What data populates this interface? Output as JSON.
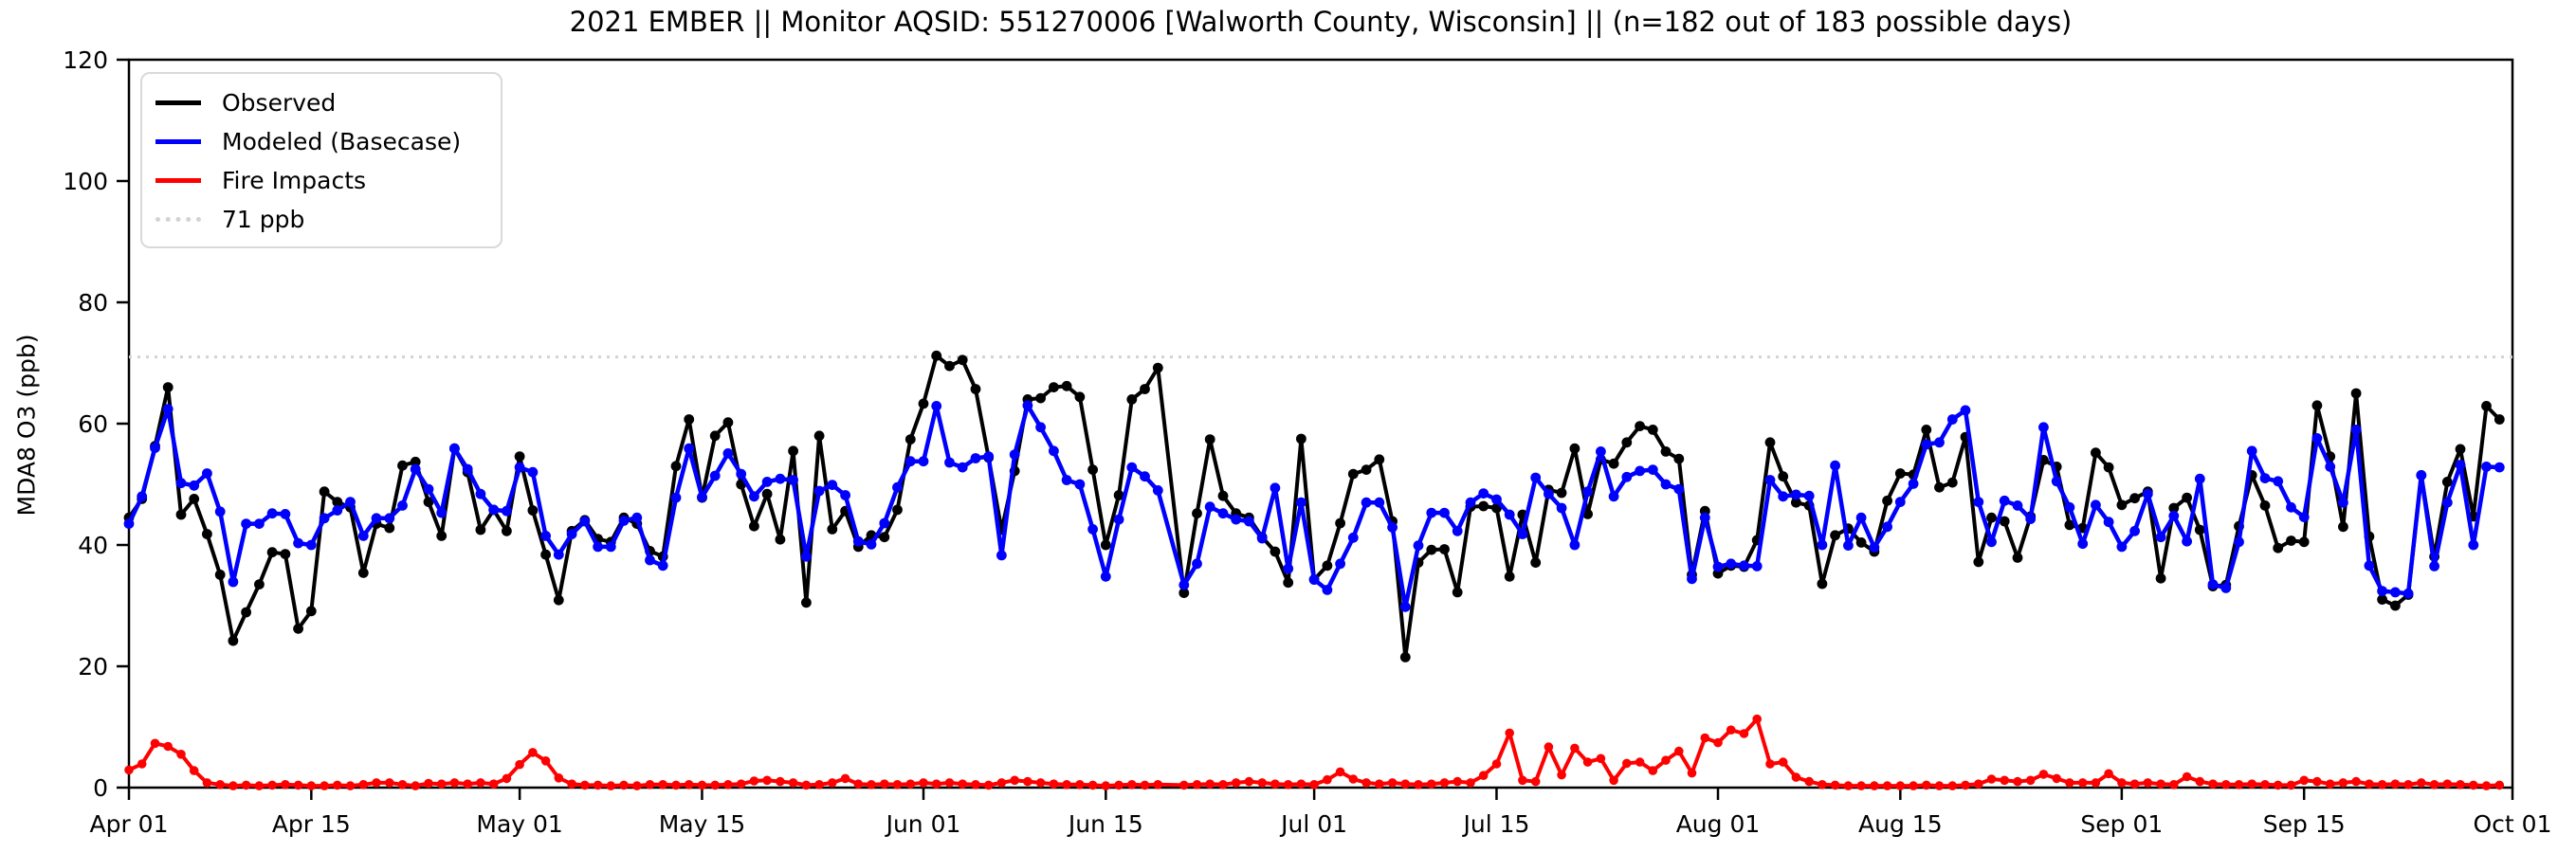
{
  "chart_data": {
    "type": "line",
    "title": "2021 EMBER || Monitor AQSID: 551270006 [Walworth County, Wisconsin] || (n=182 out of 183 possible days)",
    "xlabel": "",
    "ylabel": "MDA8 O3 (ppb)",
    "ylim": [
      0,
      120
    ],
    "yticks": [
      0,
      20,
      40,
      60,
      80,
      100,
      120
    ],
    "x_start": "2021-04-01",
    "x_end": "2021-10-01",
    "n_days": 183,
    "grid": false,
    "legend_position": "upper left",
    "xticks": [
      {
        "label": "Apr 01",
        "day": 0
      },
      {
        "label": "Apr 15",
        "day": 14
      },
      {
        "label": "May 01",
        "day": 30
      },
      {
        "label": "May 15",
        "day": 44
      },
      {
        "label": "Jun 01",
        "day": 61
      },
      {
        "label": "Jun 15",
        "day": 75
      },
      {
        "label": "Jul 01",
        "day": 91
      },
      {
        "label": "Jul 15",
        "day": 105
      },
      {
        "label": "Aug 01",
        "day": 122
      },
      {
        "label": "Aug 15",
        "day": 136
      },
      {
        "label": "Sep 01",
        "day": 153
      },
      {
        "label": "Sep 15",
        "day": 167
      },
      {
        "label": "Oct 01",
        "day": 183
      }
    ],
    "threshold": {
      "value": 71,
      "label": "71 ppb",
      "color": "#d3d3d3",
      "style": "dotted"
    },
    "missing_day_note": "one day (~Jun 20) has no data point; line connects across it",
    "series": [
      {
        "name": "Observed",
        "color": "#000000",
        "values": [
          44.5,
          47.6,
          56.3,
          66,
          45,
          47.6,
          41.8,
          35.1,
          24.2,
          28.9,
          33.5,
          38.8,
          38.5,
          26.2,
          29.1,
          48.8,
          47.1,
          46.2,
          35.4,
          43.5,
          42.8,
          53.1,
          53.7,
          47.1,
          41.5,
          55.9,
          52,
          42.5,
          45.8,
          42.3,
          54.6,
          45.7,
          38.4,
          30.9,
          42.3,
          44.1,
          41,
          40.5,
          44.5,
          43.5,
          39,
          38.1,
          53,
          60.7,
          47.8,
          58,
          60.2,
          50,
          43.1,
          48.4,
          40.9,
          55.5,
          30.5,
          58,
          42.6,
          45.6,
          39.7,
          41.6,
          41.3,
          45.8,
          57.4,
          63.3,
          71.2,
          69.5,
          70.5,
          65.7,
          54.4,
          42.5,
          52.2,
          64,
          64.2,
          66,
          66.2,
          64.4,
          52.4,
          40,
          48.2,
          64,
          65.7,
          69.2,
          null,
          32.1,
          45.2,
          57.4,
          48.1,
          45.2,
          44.5,
          41.3,
          38.9,
          33.8,
          57.5,
          34.3,
          36.6,
          43.6,
          51.7,
          52.4,
          54.1,
          43.9,
          21.5,
          37.1,
          39.2,
          39.3,
          32.2,
          46.3,
          46.4,
          46.1,
          34.8,
          45,
          37.1,
          49.1,
          48.6,
          55.9,
          45.1,
          54.1,
          53.4,
          56.9,
          59.6,
          59,
          55.4,
          54.2,
          35.1,
          45.6,
          35.3,
          36.6,
          36.4,
          40.8,
          56.9,
          51.3,
          47,
          46.5,
          33.6,
          41.6,
          42.7,
          40.4,
          38.9,
          47.3,
          51.8,
          51.6,
          59,
          49.5,
          50.3,
          57.8,
          37.2,
          44.5,
          43.9,
          37.9,
          44.7,
          54,
          52.9,
          43.3,
          42.8,
          55.2,
          52.8,
          46.6,
          47.7,
          48.8,
          34.5,
          46.1,
          47.8,
          42.5,
          33.2,
          33.4,
          43.1,
          51.5,
          46.5,
          39.5,
          40.7,
          40.5,
          63,
          54.6,
          43,
          65,
          41.4,
          31,
          30,
          31.8,
          51.5,
          38.1,
          50.4,
          55.8,
          44.7,
          62.9,
          60.7
        ]
      },
      {
        "name": "Modeled (Basecase)",
        "color": "#0000ff",
        "values": [
          43.5,
          48,
          56,
          62.4,
          50.2,
          49.8,
          51.8,
          45.5,
          33.9,
          43.5,
          43.5,
          45.2,
          45.1,
          40.3,
          40,
          44.4,
          45.7,
          47.1,
          41.5,
          44.4,
          44.4,
          46.5,
          52.5,
          49.2,
          45.3,
          55.9,
          52.5,
          48.4,
          45.8,
          45.6,
          52.8,
          52,
          41.5,
          38.4,
          41.8,
          43.9,
          39.7,
          39.7,
          44,
          44.5,
          37.5,
          36.6,
          47.8,
          55.9,
          47.9,
          51.4,
          55.1,
          51.7,
          48,
          50.4,
          50.9,
          50.7,
          38.1,
          48.9,
          49.9,
          48.2,
          40.6,
          40.1,
          43.6,
          49.5,
          53.8,
          53.8,
          62.9,
          53.6,
          52.8,
          54.3,
          54.6,
          38.3,
          54.9,
          63,
          59.4,
          55.5,
          50.7,
          50,
          42.6,
          34.8,
          44.2,
          52.8,
          51.3,
          49,
          null,
          33.4,
          36.9,
          46.3,
          45.2,
          44.2,
          43.9,
          41.1,
          49.4,
          36.1,
          47,
          34.3,
          32.6,
          36.9,
          41.2,
          47,
          47,
          42.9,
          29.8,
          39.9,
          45.3,
          45.3,
          42.3,
          47,
          48.5,
          47.5,
          45,
          41.8,
          51.1,
          48.4,
          46.1,
          40,
          48.8,
          55.4,
          48,
          51.2,
          52.2,
          52.4,
          50,
          49.2,
          34.4,
          44.5,
          36.4,
          36.9,
          36.6,
          36.5,
          50.7,
          48,
          48.3,
          48.1,
          40,
          53.1,
          39.9,
          44.5,
          39.6,
          43,
          47.1,
          50.1,
          56.6,
          56.9,
          60.7,
          62.2,
          47.1,
          40.5,
          47.3,
          46.5,
          44.3,
          59.4,
          50.5,
          46.2,
          40.2,
          46.6,
          43.8,
          39.7,
          42.3,
          48.4,
          41.3,
          44.8,
          40.6,
          50.9,
          33.5,
          32.9,
          40.5,
          55.5,
          51,
          50.5,
          46.2,
          44.6,
          57.6,
          52.9,
          47,
          59,
          36.6,
          32.4,
          32.2,
          32,
          51.5,
          36.5,
          47,
          53.2,
          40,
          52.9,
          52.8
        ]
      },
      {
        "name": "Fire Impacts",
        "color": "#ff0000",
        "values": [
          2.9,
          3.9,
          7.3,
          6.8,
          5.5,
          2.8,
          0.8,
          0.5,
          0.3,
          0.4,
          0.3,
          0.4,
          0.5,
          0.4,
          0.3,
          0.3,
          0.4,
          0.3,
          0.5,
          0.8,
          0.8,
          0.5,
          0.3,
          0.7,
          0.6,
          0.8,
          0.6,
          0.8,
          0.6,
          1.5,
          3.8,
          5.8,
          4.4,
          1.6,
          0.6,
          0.4,
          0.4,
          0.3,
          0.4,
          0.3,
          0.5,
          0.5,
          0.4,
          0.5,
          0.4,
          0.4,
          0.5,
          0.6,
          1.1,
          1.2,
          1,
          0.8,
          0.4,
          0.5,
          0.8,
          1.5,
          0.6,
          0.5,
          0.6,
          0.5,
          0.6,
          0.8,
          0.6,
          0.8,
          0.6,
          0.5,
          0.4,
          0.8,
          1.2,
          1,
          0.8,
          0.6,
          0.5,
          0.5,
          0.4,
          0.3,
          0.4,
          0.5,
          0.4,
          0.5,
          null,
          0.4,
          0.5,
          0.6,
          0.5,
          0.8,
          1,
          0.8,
          0.6,
          0.5,
          0.6,
          0.5,
          1.3,
          2.6,
          1.4,
          0.8,
          0.6,
          0.8,
          0.6,
          0.5,
          0.6,
          0.8,
          1,
          0.8,
          2,
          3.9,
          9,
          1.2,
          1,
          6.7,
          2.1,
          6.5,
          4.2,
          4.8,
          1.2,
          4,
          4.2,
          2.8,
          4.5,
          6,
          2.4,
          8.2,
          7.4,
          9.5,
          8.9,
          11.3,
          3.9,
          4.2,
          1.7,
          1,
          0.5,
          0.4,
          0.3,
          0.3,
          0.3,
          0.3,
          0.3,
          0.3,
          0.4,
          0.3,
          0.3,
          0.4,
          0.6,
          1.4,
          1.2,
          1,
          1.2,
          2.2,
          1.5,
          0.8,
          0.8,
          0.8,
          2.3,
          0.8,
          0.6,
          0.8,
          0.6,
          0.5,
          1.8,
          1,
          0.6,
          0.5,
          0.5,
          0.6,
          0.5,
          0.4,
          0.4,
          1.2,
          1,
          0.6,
          0.8,
          1,
          0.6,
          0.5,
          0.6,
          0.5,
          0.8,
          0.5,
          0.6,
          0.5,
          0.4,
          0.3,
          0.4
        ]
      }
    ]
  },
  "legend": {
    "items": [
      {
        "label": "Observed",
        "color": "#000000",
        "style": "solid"
      },
      {
        "label": "Modeled (Basecase)",
        "color": "#0000ff",
        "style": "solid"
      },
      {
        "label": "Fire Impacts",
        "color": "#ff0000",
        "style": "solid"
      },
      {
        "label": "71 ppb",
        "color": "#d3d3d3",
        "style": "dotted"
      }
    ]
  },
  "colors": {
    "background": "#ffffff",
    "axis": "#000000",
    "threshold": "#d3d3d3"
  }
}
